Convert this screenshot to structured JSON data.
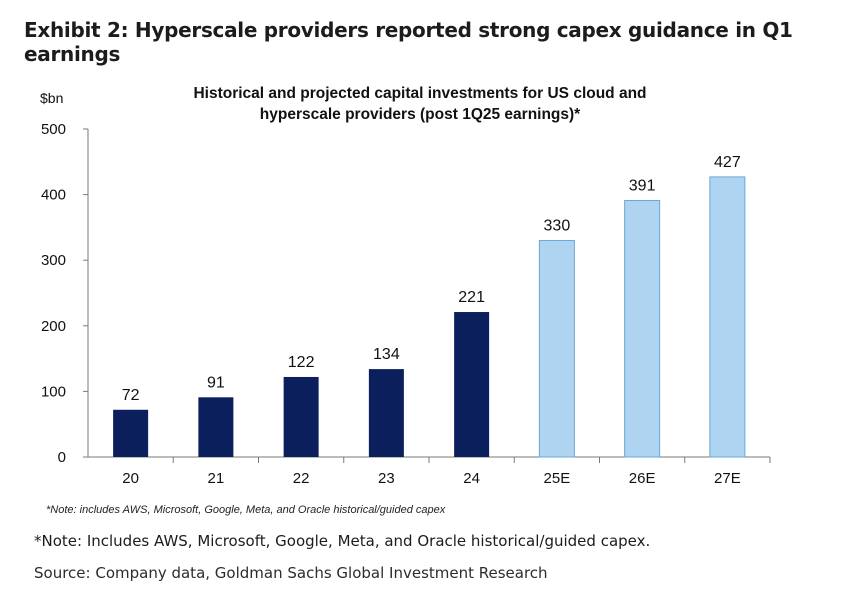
{
  "exhibit_title": "Exhibit 2: Hyperscale providers reported strong capex guidance in Q1 earnings",
  "chart_data": {
    "type": "bar",
    "title": "Historical and projected capital investments for US cloud and hyperscale providers (post 1Q25 earnings)*",
    "title_lines": [
      "Historical and projected capital investments for US cloud and",
      "hyperscale providers (post 1Q25 earnings)*"
    ],
    "ylabel": "$bn",
    "xlabel": "",
    "ylim": [
      0,
      500
    ],
    "yticks": [
      0,
      100,
      200,
      300,
      400,
      500
    ],
    "categories": [
      "20",
      "21",
      "22",
      "23",
      "24",
      "25E",
      "26E",
      "27E"
    ],
    "values": [
      72,
      91,
      122,
      134,
      221,
      330,
      391,
      427
    ],
    "projected": [
      false,
      false,
      false,
      false,
      false,
      true,
      true,
      true
    ],
    "colors": {
      "historical": "#0b1f5c",
      "projected": "#aed4f2",
      "projected_edge": "#6aa8d8"
    },
    "grid": false,
    "inner_note": "*Note: includes AWS, Microsoft, Google, Meta, and Oracle historical/guided capex"
  },
  "footer": {
    "note": "*Note: Includes AWS, Microsoft, Google, Meta, and Oracle historical/guided capex.",
    "source": "Source: Company data, Goldman Sachs Global Investment Research"
  }
}
